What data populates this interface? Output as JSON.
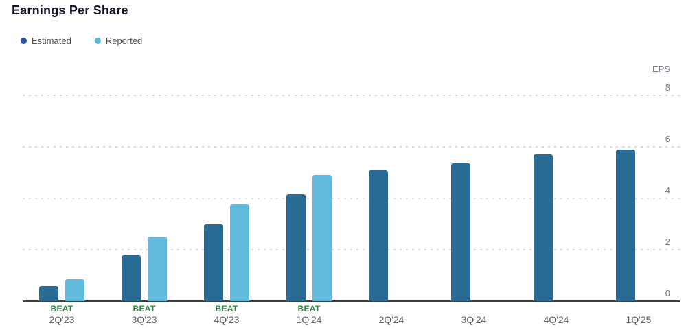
{
  "title": "Earnings Per Share",
  "legend": {
    "items": [
      {
        "label": "Estimated",
        "dot_color": "#2457a0"
      },
      {
        "label": "Reported",
        "dot_color": "#58b7e0"
      }
    ]
  },
  "chart_data": {
    "type": "bar",
    "title": "Earnings Per Share",
    "categories": [
      "2Q'23",
      "3Q'23",
      "4Q'23",
      "1Q'24",
      "2Q'24",
      "3Q'24",
      "4Q'24",
      "1Q'25"
    ],
    "series": [
      {
        "name": "Estimated",
        "color": "#2a6b96",
        "values": [
          0.6,
          1.8,
          3.0,
          4.15,
          5.1,
          5.35,
          5.7,
          5.9
        ]
      },
      {
        "name": "Reported",
        "color": "#62badc",
        "values": [
          0.85,
          2.5,
          3.75,
          4.9,
          null,
          null,
          null,
          null
        ]
      }
    ],
    "beat_labels": [
      "BEAT",
      "BEAT",
      "BEAT",
      "BEAT",
      null,
      null,
      null,
      null
    ],
    "ylabel": "EPS",
    "yticks": [
      0,
      2,
      4,
      6,
      8
    ],
    "ylim": [
      0,
      8
    ],
    "grid": "horizontal-dotted",
    "legend_position": "top-left",
    "y_axis_position": "right"
  },
  "colors": {
    "beat_green": "#2c8c44",
    "axis_line": "#3b3e45",
    "gridline": "#d8dade",
    "tick_label": "#71767f",
    "category_label": "#5d626b",
    "title_text": "#14182b",
    "legend_text": "#4a4f59"
  }
}
